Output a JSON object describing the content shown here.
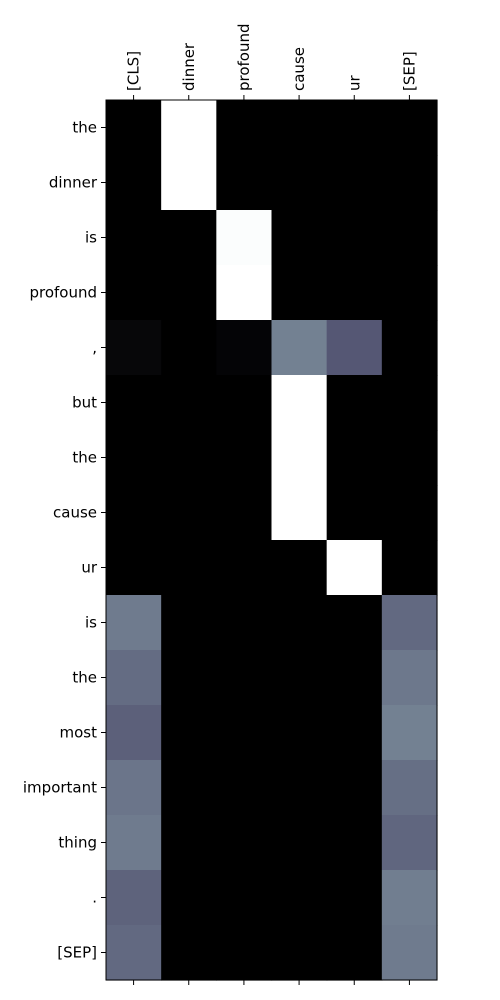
{
  "chart_data": {
    "type": "heatmap",
    "title": "",
    "xlabel": "",
    "ylabel": "",
    "x_position": "top",
    "colormap": "bone",
    "value_range": [
      0,
      1
    ],
    "x_categories": [
      "[CLS]",
      "dinner",
      "profound",
      "cause",
      "ur",
      "[SEP]"
    ],
    "y_categories": [
      "the",
      "dinner",
      "is",
      "profound",
      ",",
      "but",
      "the",
      "cause",
      "ur",
      "is",
      "the",
      "most",
      "important",
      "thing",
      ".",
      "[SEP]"
    ],
    "values": [
      [
        0.0,
        1.0,
        0.0,
        0.0,
        0.0,
        0.0
      ],
      [
        0.0,
        1.0,
        0.0,
        0.0,
        0.0,
        0.0
      ],
      [
        0.0,
        0.0,
        0.99,
        0.0,
        0.0,
        0.0
      ],
      [
        0.0,
        0.0,
        1.0,
        0.0,
        0.0,
        0.0
      ],
      [
        0.03,
        0.0,
        0.02,
        0.53,
        0.39,
        0.0
      ],
      [
        0.0,
        0.0,
        0.0,
        1.0,
        0.0,
        0.0
      ],
      [
        0.0,
        0.0,
        0.0,
        1.0,
        0.0,
        0.0
      ],
      [
        0.0,
        0.0,
        0.0,
        1.0,
        0.0,
        0.0
      ],
      [
        0.0,
        0.0,
        0.0,
        0.0,
        1.0,
        0.0
      ],
      [
        0.51,
        0.0,
        0.0,
        0.0,
        0.0,
        0.45
      ],
      [
        0.46,
        0.0,
        0.0,
        0.0,
        0.0,
        0.5
      ],
      [
        0.42,
        0.0,
        0.0,
        0.0,
        0.0,
        0.53
      ],
      [
        0.49,
        0.0,
        0.0,
        0.0,
        0.0,
        0.47
      ],
      [
        0.51,
        0.0,
        0.0,
        0.0,
        0.0,
        0.44
      ],
      [
        0.43,
        0.0,
        0.0,
        0.0,
        0.0,
        0.52
      ],
      [
        0.45,
        0.0,
        0.0,
        0.0,
        0.0,
        0.51
      ]
    ]
  }
}
